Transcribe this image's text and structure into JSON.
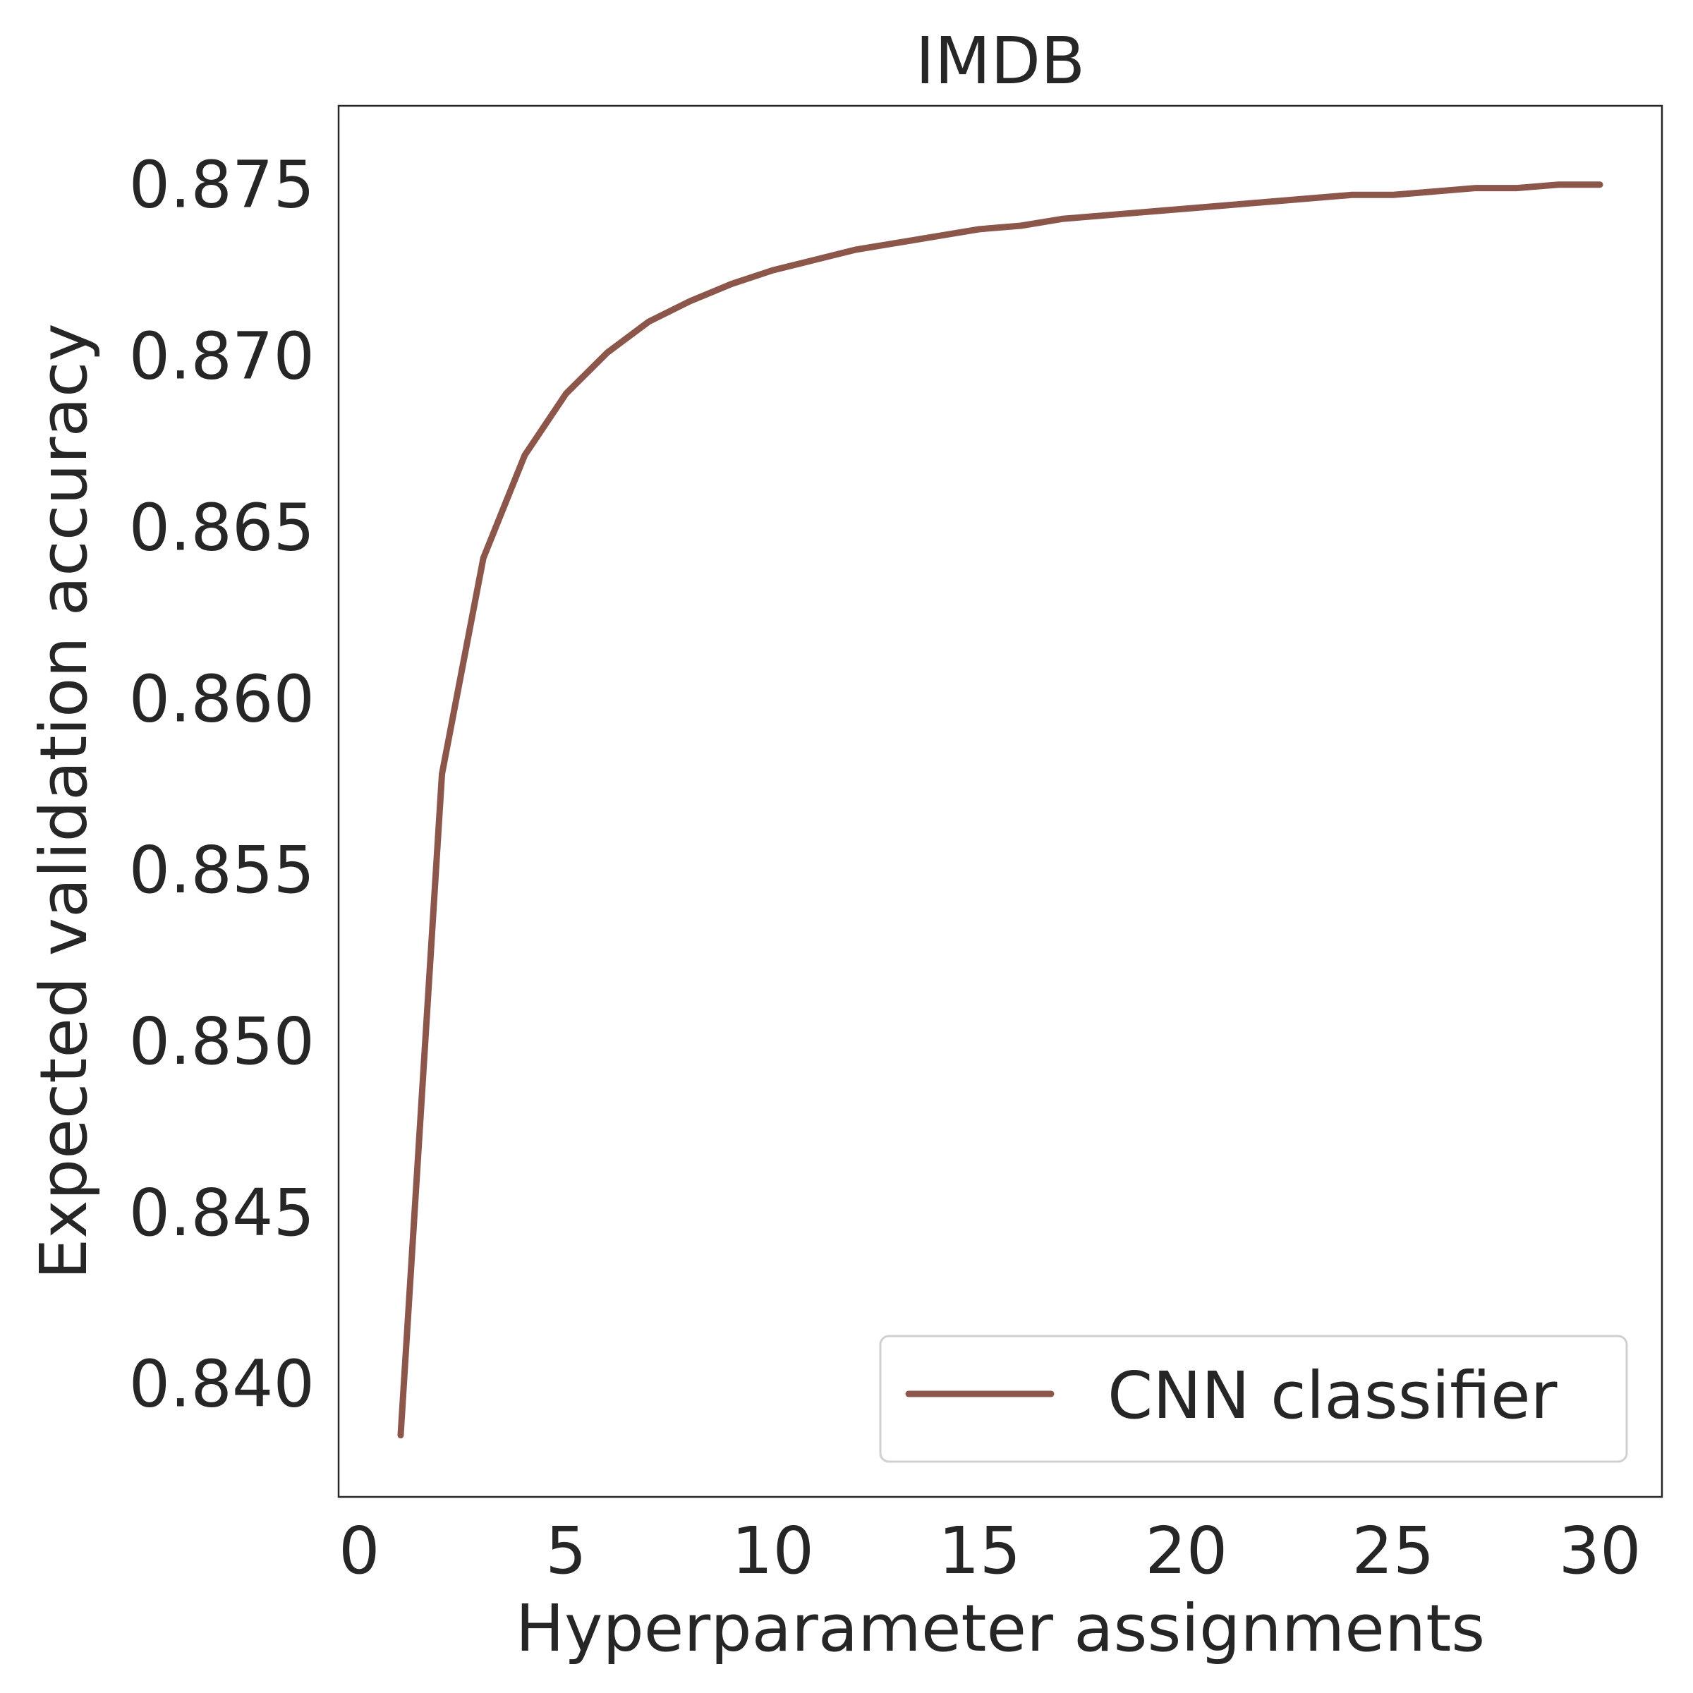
{
  "chart_data": {
    "type": "line",
    "title": "IMDB",
    "xlabel": "Hyperparameter assignments",
    "ylabel": "Expected validation accuracy",
    "xlim": [
      -0.5,
      31.5
    ],
    "ylim": [
      0.8367,
      0.8773
    ],
    "xticks": [
      0,
      5,
      10,
      15,
      20,
      25,
      30
    ],
    "yticks": [
      0.84,
      0.845,
      0.85,
      0.855,
      0.86,
      0.865,
      0.87,
      0.875
    ],
    "ytick_labels": [
      "0.840",
      "0.845",
      "0.850",
      "0.855",
      "0.860",
      "0.865",
      "0.870",
      "0.875"
    ],
    "grid": false,
    "legend_position": "lower-right",
    "series": [
      {
        "name": "CNN classifier",
        "color": "#8c564b",
        "x": [
          1,
          2,
          3,
          4,
          5,
          6,
          7,
          8,
          9,
          10,
          11,
          12,
          13,
          14,
          15,
          16,
          17,
          18,
          19,
          20,
          21,
          22,
          23,
          24,
          25,
          26,
          27,
          28,
          29,
          30
        ],
        "y": [
          0.8385,
          0.8578,
          0.8641,
          0.8671,
          0.8689,
          0.8701,
          0.871,
          0.8716,
          0.8721,
          0.8725,
          0.8728,
          0.8731,
          0.8733,
          0.8735,
          0.8737,
          0.8738,
          0.874,
          0.8741,
          0.8742,
          0.8743,
          0.8744,
          0.8745,
          0.8746,
          0.8747,
          0.8747,
          0.8748,
          0.8749,
          0.8749,
          0.875,
          0.875
        ]
      }
    ]
  }
}
